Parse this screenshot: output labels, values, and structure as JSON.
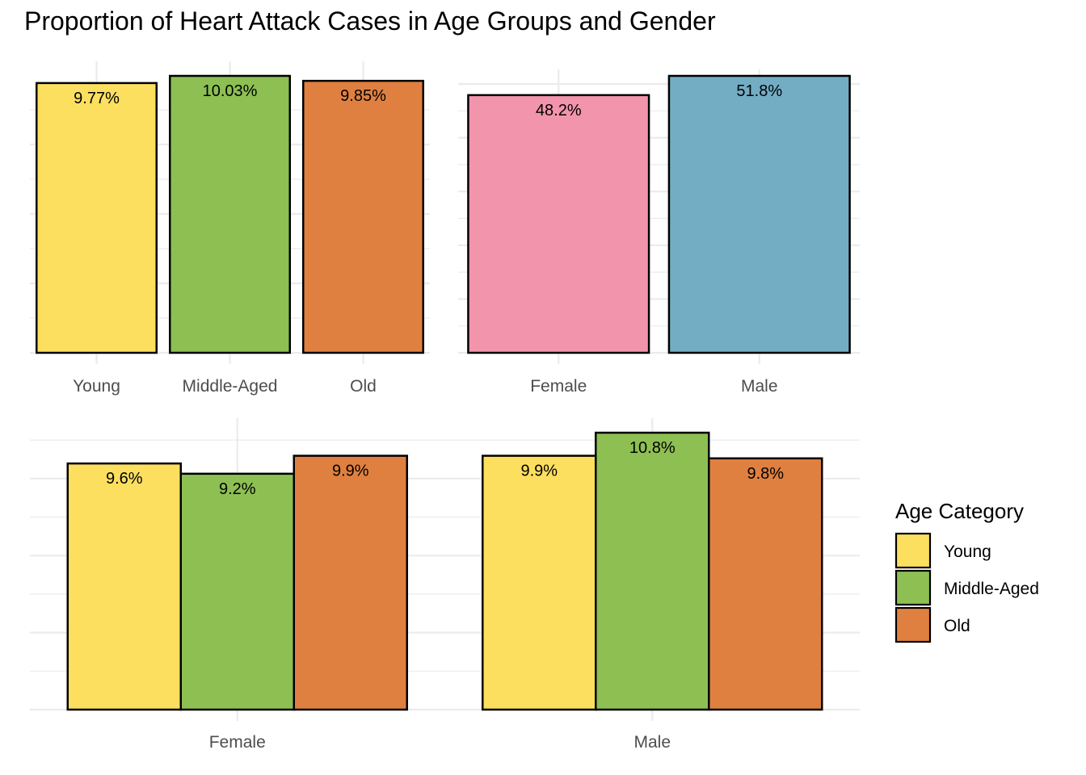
{
  "title": "Proportion of Heart Attack Cases in Age Groups and Gender",
  "colors": {
    "young": "#FDDF60",
    "middle": "#8DBF53",
    "old": "#E08040",
    "female": "#F394AD",
    "male": "#72ADC4",
    "grid": "#EBEBEB",
    "outline": "#000000"
  },
  "chart_data": [
    {
      "type": "bar",
      "categories": [
        "Young",
        "Middle-Aged",
        "Old"
      ],
      "values": [
        9.77,
        10.03,
        9.85
      ],
      "labels": [
        "9.77%",
        "10.03%",
        "9.85%"
      ],
      "colors": [
        "#FDDF60",
        "#8DBF53",
        "#E08040"
      ],
      "ylim": [
        0,
        10.03
      ]
    },
    {
      "type": "bar",
      "categories": [
        "Female",
        "Male"
      ],
      "values": [
        48.2,
        51.8
      ],
      "labels": [
        "48.2%",
        "51.8%"
      ],
      "colors": [
        "#F394AD",
        "#72ADC4"
      ],
      "ylim": [
        0,
        51.8
      ]
    },
    {
      "type": "bar",
      "categories": [
        "Female",
        "Male"
      ],
      "series": [
        {
          "name": "Young",
          "values": [
            9.6,
            9.9
          ],
          "labels": [
            "9.6%",
            "9.9%"
          ],
          "color": "#FDDF60"
        },
        {
          "name": "Middle-Aged",
          "values": [
            9.2,
            10.8
          ],
          "labels": [
            "9.2%",
            "10.8%"
          ],
          "color": "#8DBF53"
        },
        {
          "name": "Old",
          "values": [
            9.9,
            9.8
          ],
          "labels": [
            "9.9%",
            "9.8%"
          ],
          "color": "#E08040"
        }
      ],
      "ylim": [
        0,
        10.8
      ],
      "legend": {
        "title": "Age Category",
        "position": "right",
        "items": [
          "Young",
          "Middle-Aged",
          "Old"
        ]
      }
    }
  ]
}
